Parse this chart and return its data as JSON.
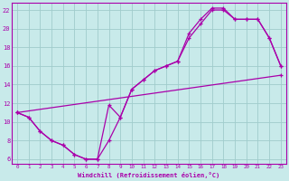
{
  "xlabel": "Windchill (Refroidissement éolien,°C)",
  "background_color": "#c8eaea",
  "grid_color": "#a0cccc",
  "line_color": "#aa00aa",
  "xlim": [
    -0.5,
    23.5
  ],
  "ylim": [
    5.5,
    22.8
  ],
  "xticks": [
    0,
    1,
    2,
    3,
    4,
    5,
    6,
    7,
    8,
    9,
    10,
    11,
    12,
    13,
    14,
    15,
    16,
    17,
    18,
    19,
    20,
    21,
    22,
    23
  ],
  "yticks": [
    6,
    8,
    10,
    12,
    14,
    16,
    18,
    20,
    22
  ],
  "curve1_x": [
    0,
    1,
    2,
    3,
    4,
    5,
    6,
    7,
    8,
    9,
    10,
    11,
    12,
    13,
    14,
    15,
    16,
    17,
    18,
    19,
    20,
    21,
    22,
    23
  ],
  "curve1_y": [
    11,
    10.5,
    9.0,
    8.0,
    7.5,
    6.5,
    6.0,
    6.0,
    8.0,
    10.5,
    13.5,
    14.5,
    15.5,
    16.0,
    16.5,
    19.0,
    20.5,
    22.0,
    22.0,
    21.0,
    21.0,
    21.0,
    19.0,
    16.0
  ],
  "curve2_x": [
    0,
    1,
    2,
    3,
    4,
    5,
    6,
    7,
    8,
    9,
    10,
    11,
    12,
    13,
    14,
    15,
    16,
    17,
    18,
    19,
    20,
    21,
    22,
    23
  ],
  "curve2_y": [
    11,
    10.5,
    9.0,
    8.0,
    7.5,
    6.5,
    6.0,
    6.0,
    11.8,
    10.5,
    13.5,
    14.5,
    15.5,
    16.0,
    16.5,
    19.5,
    21.0,
    22.2,
    22.2,
    21.0,
    21.0,
    21.0,
    19.0,
    16.0
  ],
  "line3_x": [
    0,
    23
  ],
  "line3_y": [
    11,
    15.0
  ]
}
